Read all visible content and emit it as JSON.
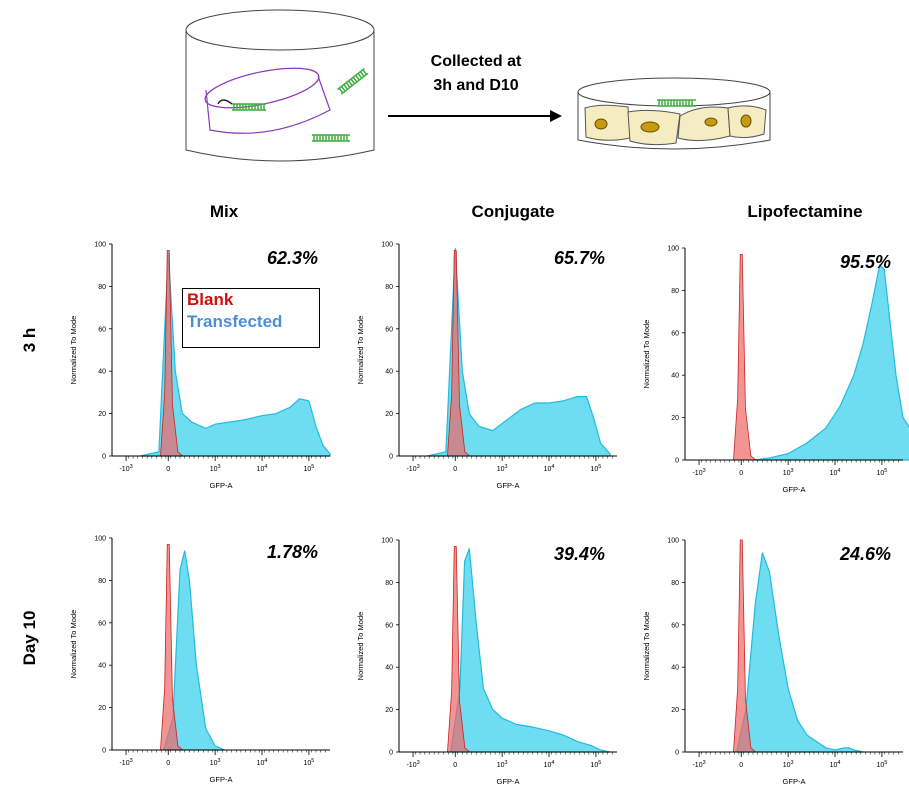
{
  "diagram": {
    "arrow_label_line1": "Collected at",
    "arrow_label_line2": "3h and D10"
  },
  "columns": [
    "Mix",
    "Conjugate",
    "Lipofectamine"
  ],
  "rows": [
    "3 h",
    "Day 10"
  ],
  "legend": {
    "blank": "Blank",
    "transfected": "Transfected",
    "blank_color": "#cc1111",
    "transfected_color": "#4a90d9"
  },
  "colors": {
    "blank_fill": "#ee6666",
    "transfected_fill": "#55d6ee",
    "transfected_line": "#22bbdd"
  },
  "chart_data": [
    {
      "type": "area",
      "column": "Mix",
      "row": "3 h",
      "percent": "62.3%",
      "xlabel": "GFP-A",
      "ylabel": "Normalized To Mode",
      "ylim": [
        0,
        100
      ],
      "xticks": [
        "-10^3",
        "0",
        "10^3",
        "10^4",
        "10^5"
      ],
      "yticks": [
        0,
        20,
        40,
        60,
        80,
        100
      ],
      "series": [
        {
          "name": "Blank",
          "peak_x": 0,
          "peak_y": 97
        },
        {
          "name": "Transfected",
          "x": [
            -0.6,
            -0.2,
            0,
            0.15,
            0.3,
            0.5,
            0.8,
            1.0,
            1.3,
            1.6,
            2.0,
            2.3,
            2.6,
            2.8,
            3.0,
            3.15,
            3.3,
            3.45
          ],
          "y": [
            0,
            2,
            96,
            40,
            20,
            16,
            13,
            15,
            16,
            17,
            19,
            20,
            23,
            27,
            26,
            14,
            5,
            1
          ]
        }
      ]
    },
    {
      "type": "area",
      "column": "Conjugate",
      "row": "3 h",
      "percent": "65.7%",
      "xlabel": "GFP-A",
      "ylabel": "Normalized To Mode",
      "ylim": [
        0,
        100
      ],
      "xticks": [
        "-10^3",
        "0",
        "10^3",
        "10^4",
        "10^5"
      ],
      "yticks": [
        0,
        20,
        40,
        60,
        80,
        100
      ],
      "series": [
        {
          "name": "Blank",
          "peak_x": 0,
          "peak_y": 97
        },
        {
          "name": "Transfected",
          "x": [
            -0.6,
            -0.2,
            0,
            0.15,
            0.3,
            0.5,
            0.8,
            1.1,
            1.4,
            1.7,
            2.0,
            2.3,
            2.6,
            2.8,
            2.95,
            3.1,
            3.3
          ],
          "y": [
            0,
            2,
            98,
            40,
            20,
            14,
            12,
            17,
            22,
            25,
            25,
            26,
            28,
            28,
            18,
            6,
            1
          ]
        }
      ]
    },
    {
      "type": "area",
      "column": "Lipofectamine",
      "row": "3 h",
      "percent": "95.5%",
      "xlabel": "GFP-A",
      "ylabel": "Normalized To Mode",
      "ylim": [
        0,
        100
      ],
      "xticks": [
        "-10^3",
        "0",
        "10^3",
        "10^4",
        "10^5"
      ],
      "yticks": [
        0,
        20,
        40,
        60,
        80,
        100
      ],
      "series": [
        {
          "name": "Blank",
          "peak_x": 0,
          "peak_y": 97
        },
        {
          "name": "Transfected",
          "x": [
            0.3,
            0.6,
            1.0,
            1.4,
            1.8,
            2.1,
            2.4,
            2.6,
            2.8,
            2.95,
            3.05,
            3.15,
            3.3,
            3.45,
            3.6
          ],
          "y": [
            0,
            1,
            3,
            8,
            15,
            25,
            40,
            55,
            75,
            92,
            90,
            70,
            40,
            20,
            15
          ]
        }
      ]
    },
    {
      "type": "area",
      "column": "Mix",
      "row": "Day 10",
      "percent": "1.78%",
      "xlabel": "GFP-A",
      "ylabel": "Normalized To Mode",
      "ylim": [
        0,
        100
      ],
      "xticks": [
        "-10^3",
        "0",
        "10^3",
        "10^4",
        "10^5"
      ],
      "yticks": [
        0,
        20,
        40,
        60,
        80,
        100
      ],
      "series": [
        {
          "name": "Blank",
          "peak_x": 0,
          "peak_y": 97
        },
        {
          "name": "Transfected",
          "x": [
            -0.1,
            0.1,
            0.25,
            0.35,
            0.45,
            0.6,
            0.8,
            1.0,
            1.2
          ],
          "y": [
            0,
            15,
            85,
            94,
            80,
            40,
            10,
            2,
            0
          ]
        }
      ]
    },
    {
      "type": "area",
      "column": "Conjugate",
      "row": "Day 10",
      "percent": "39.4%",
      "xlabel": "GFP-A",
      "ylabel": "Normalized To Mode",
      "ylim": [
        0,
        100
      ],
      "xticks": [
        "-10^3",
        "0",
        "10^3",
        "10^4",
        "10^5"
      ],
      "yticks": [
        0,
        20,
        40,
        60,
        80,
        100
      ],
      "series": [
        {
          "name": "Blank",
          "peak_x": 0,
          "peak_y": 97
        },
        {
          "name": "Transfected",
          "x": [
            -0.1,
            0.1,
            0.2,
            0.3,
            0.45,
            0.6,
            0.8,
            1.0,
            1.3,
            1.6,
            2.0,
            2.3,
            2.6,
            2.9,
            3.1,
            3.3
          ],
          "y": [
            0,
            30,
            90,
            96,
            60,
            30,
            20,
            16,
            13,
            12,
            10,
            8,
            5,
            3,
            1,
            0
          ]
        }
      ]
    },
    {
      "type": "area",
      "column": "Lipofectamine",
      "row": "Day 10",
      "percent": "24.6%",
      "xlabel": "GFP-A",
      "ylabel": "Normalized To Mode",
      "ylim": [
        0,
        100
      ],
      "xticks": [
        "-10^3",
        "0",
        "10^3",
        "10^4",
        "10^5"
      ],
      "yticks": [
        0,
        20,
        40,
        60,
        80,
        100
      ],
      "series": [
        {
          "name": "Blank",
          "peak_x": 0,
          "peak_y": 100
        },
        {
          "name": "Transfected",
          "x": [
            -0.1,
            0.1,
            0.3,
            0.45,
            0.6,
            0.8,
            1.0,
            1.2,
            1.4,
            1.6,
            1.8,
            2.0,
            2.2,
            2.3,
            2.4,
            2.6
          ],
          "y": [
            0,
            20,
            70,
            94,
            85,
            55,
            30,
            15,
            8,
            5,
            2,
            1,
            2,
            2,
            1,
            0
          ]
        }
      ]
    }
  ]
}
